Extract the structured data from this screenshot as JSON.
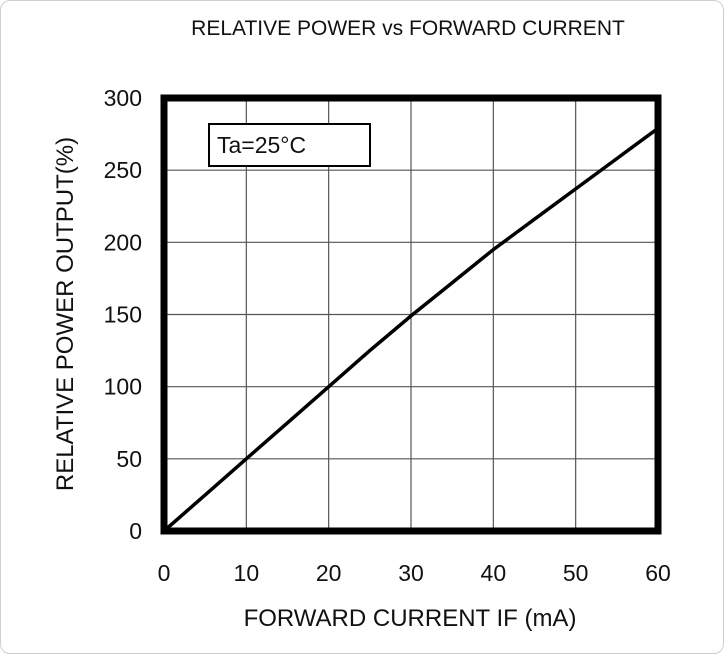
{
  "chart_data": {
    "type": "line",
    "title": "RELATIVE POWER vs FORWARD CURRENT",
    "xlabel": "FORWARD CURRENT IF (mA)",
    "ylabel": "RELATIVE POWER OUTPUT(%)",
    "xlim": [
      0,
      60
    ],
    "ylim": [
      0,
      300
    ],
    "xticks": [
      "0",
      "10",
      "20",
      "30",
      "40",
      "50",
      "60"
    ],
    "yticks": [
      "0",
      "50",
      "100",
      "150",
      "200",
      "250",
      "300"
    ],
    "grid": true,
    "annotation": "Ta=25°C",
    "series": [
      {
        "x": [
          0,
          5,
          10,
          15,
          20,
          25,
          30,
          35,
          40,
          45,
          50,
          55,
          60
        ],
        "values": [
          0,
          25,
          50,
          75,
          100,
          125,
          149,
          172,
          195,
          216,
          237,
          258,
          279
        ]
      }
    ]
  }
}
